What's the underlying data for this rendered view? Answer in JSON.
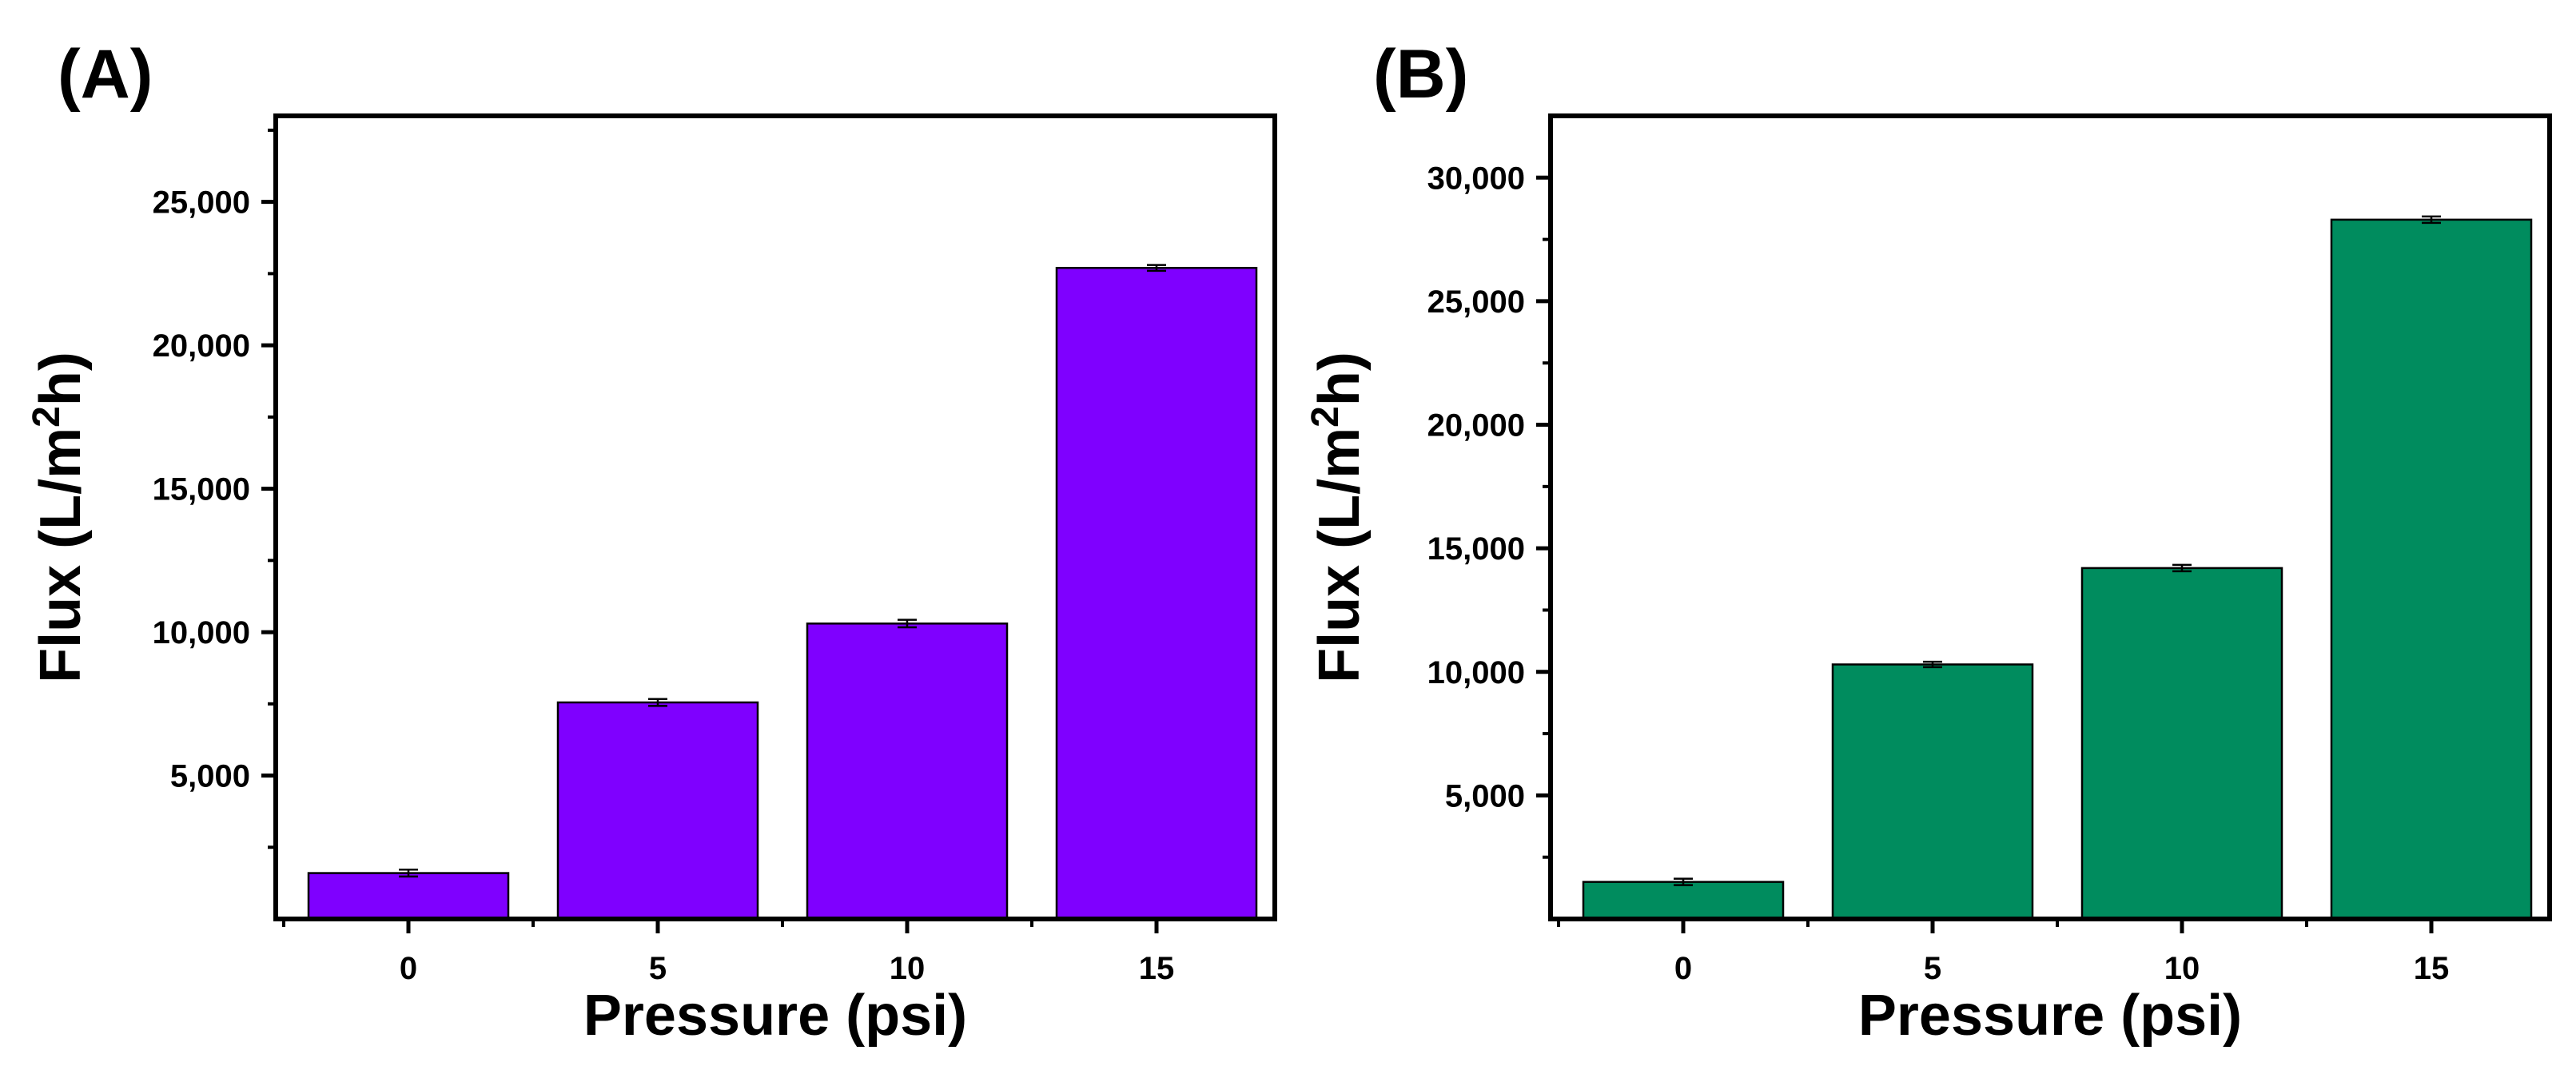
{
  "chart_data": [
    {
      "type": "bar",
      "panel_label": "(A)",
      "categories": [
        "0",
        "5",
        "10",
        "15"
      ],
      "values": [
        1600,
        7550,
        10300,
        22700
      ],
      "errors": [
        120,
        120,
        130,
        100
      ],
      "color": "#7F00FF",
      "xlabel": "Pressure (psi)",
      "ylabel_main": "Flux (L/m",
      "ylabel_sup": "2",
      "ylabel_end": "h)",
      "ylim": [
        0,
        28000
      ],
      "yticks": [
        5000,
        10000,
        15000,
        20000,
        25000
      ],
      "ytick_labels": [
        "5,000",
        "10,000",
        "15,000",
        "20,000",
        "25,000"
      ],
      "grid": false
    },
    {
      "type": "bar",
      "panel_label": "(B)",
      "categories": [
        "0",
        "5",
        "10",
        "15"
      ],
      "values": [
        1500,
        10300,
        14200,
        28300
      ],
      "errors": [
        130,
        110,
        130,
        130
      ],
      "color": "#008C5E",
      "xlabel": "Pressure (psi)",
      "ylabel_main": "Flux (L/m",
      "ylabel_sup": "2",
      "ylabel_end": "h)",
      "ylim": [
        0,
        32500
      ],
      "yticks": [
        5000,
        10000,
        15000,
        20000,
        25000,
        30000
      ],
      "ytick_labels": [
        "5,000",
        "10,000",
        "15,000",
        "20,000",
        "25,000",
        "30,000"
      ],
      "grid": false
    }
  ]
}
